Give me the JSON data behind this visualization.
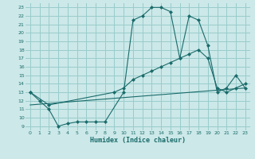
{
  "xlabel": "Humidex (Indice chaleur)",
  "bg_color": "#cce8e8",
  "grid_color": "#99cccc",
  "line_color": "#1a6b6b",
  "xlim": [
    -0.5,
    23.5
  ],
  "ylim": [
    8.5,
    23.5
  ],
  "yticks": [
    9,
    10,
    11,
    12,
    13,
    14,
    15,
    16,
    17,
    18,
    19,
    20,
    21,
    22,
    23
  ],
  "xticks": [
    0,
    1,
    2,
    3,
    4,
    5,
    6,
    7,
    8,
    9,
    10,
    11,
    12,
    13,
    14,
    15,
    16,
    17,
    18,
    19,
    20,
    21,
    22,
    23
  ],
  "line1_x": [
    0,
    1,
    2,
    3,
    4,
    5,
    6,
    7,
    8,
    10,
    11,
    12,
    13,
    14,
    15,
    16,
    17,
    18,
    19,
    20,
    21,
    22,
    23
  ],
  "line1_y": [
    13,
    12,
    11,
    9,
    9.3,
    9.5,
    9.5,
    9.5,
    9.5,
    13,
    21.5,
    22,
    23,
    23,
    22.5,
    17,
    22,
    21.5,
    18.5,
    13,
    13.5,
    15,
    13.5
  ],
  "line2_x": [
    0,
    2,
    9,
    10,
    11,
    12,
    13,
    14,
    15,
    16,
    17,
    18,
    19,
    20,
    21,
    22,
    23
  ],
  "line2_y": [
    13,
    11.5,
    13,
    13.5,
    14.5,
    15,
    15.5,
    16,
    16.5,
    17,
    17.5,
    18,
    17,
    13.5,
    13,
    13.5,
    14
  ],
  "line3_x": [
    0,
    23
  ],
  "line3_y": [
    11.5,
    13.5
  ]
}
